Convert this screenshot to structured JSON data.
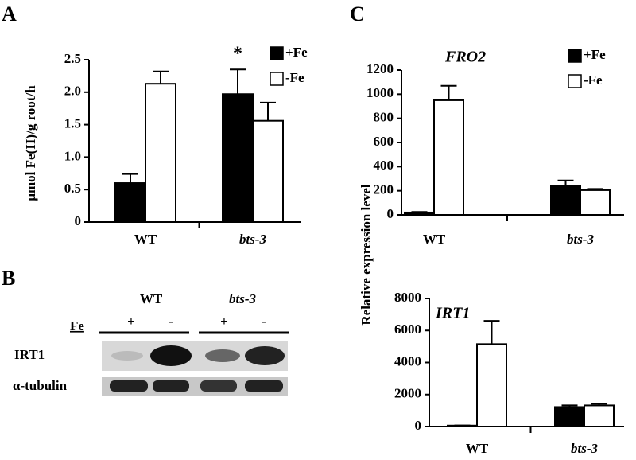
{
  "panels": [
    "A",
    "B",
    "C"
  ],
  "blot": {
    "genotypes": [
      "WT",
      "bts-3"
    ],
    "condition_label": "Fe",
    "treatments": [
      "+",
      "-",
      "+",
      "-"
    ],
    "rows": [
      "IRT1",
      "α-tubulin"
    ]
  },
  "chart_data": [
    {
      "type": "bar",
      "ylabel": "μmol Fe(II)/g root/h",
      "categories": [
        "WT",
        "bts-3"
      ],
      "series": [
        {
          "name": "+Fe",
          "color": "#000000",
          "values": [
            0.6,
            1.97
          ],
          "errors": [
            0.14,
            0.38
          ]
        },
        {
          "name": "-Fe",
          "color": "#ffffff",
          "values": [
            2.13,
            1.56
          ],
          "errors": [
            0.19,
            0.28
          ]
        }
      ],
      "ylim": [
        0,
        2.5
      ],
      "yticks": [
        0,
        0.5,
        {
          "value": 1,
          "label": "1.0"
        },
        1.5,
        {
          "value": 2,
          "label": "2.0"
        },
        2.5
      ],
      "annotations": [
        {
          "text": "*",
          "series": 0,
          "category": 1
        }
      ],
      "legend": "upper right"
    },
    {
      "type": "bar",
      "title": "FRO2",
      "ylabel": "Relative expression level",
      "categories": [
        "WT",
        "bts-3"
      ],
      "series": [
        {
          "name": "+Fe",
          "color": "#000000",
          "values": [
            20,
            240
          ],
          "errors": [
            5,
            45
          ]
        },
        {
          "name": "-Fe",
          "color": "#ffffff",
          "values": [
            950,
            205
          ],
          "errors": [
            120,
            10
          ]
        }
      ],
      "ylim": [
        0,
        1200
      ],
      "yticks": [
        0,
        200,
        400,
        600,
        800,
        1000,
        1200
      ],
      "legend": "upper right"
    },
    {
      "type": "bar",
      "title": "IRT1",
      "categories": [
        "WT",
        "bts-3"
      ],
      "series": [
        {
          "color": "#000000",
          "values": [
            60,
            1220
          ],
          "errors": [
            10,
            100
          ]
        },
        {
          "color": "#ffffff",
          "values": [
            5150,
            1320
          ],
          "errors": [
            1450,
            100
          ]
        }
      ],
      "ylim": [
        0,
        8000
      ],
      "yticks": [
        0,
        2000,
        4000,
        6000,
        8000
      ]
    }
  ]
}
